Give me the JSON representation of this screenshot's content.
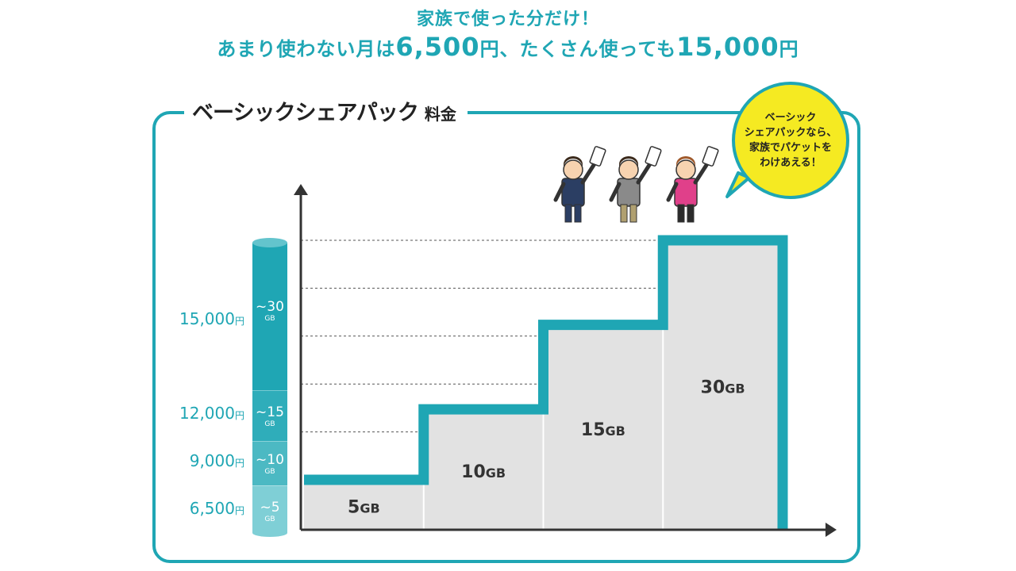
{
  "header": {
    "line1": "家族で使った分だけ！",
    "line2_pre": "あまり使わない月は",
    "line2_price_low": "6,500",
    "line2_yen1": "円、たくさん使っても",
    "line2_price_high": "15,000",
    "line2_yen2": "円"
  },
  "panel": {
    "title": "ベーシックシェアパック",
    "title_suffix": "料金"
  },
  "bubble": {
    "line1": "ベーシック",
    "line2": "シェアパックなら、",
    "line3": "家族でパケットを",
    "line4": "わけあえる！"
  },
  "colors": {
    "accent": "#1fa6b4",
    "bar_fill": "#e2e2e2",
    "bubble": "#f5ea22",
    "axis": "#333333"
  },
  "chart_data": {
    "type": "bar",
    "categories": [
      "5GB",
      "10GB",
      "15GB",
      "30GB"
    ],
    "values": [
      6500,
      9000,
      12000,
      15000
    ],
    "y_tick_labels": [
      "6,500円",
      "9,000円",
      "12,000円",
      "15,000円"
    ],
    "cylinder_labels": [
      {
        "top": "~5",
        "unit": "GB"
      },
      {
        "top": "~10",
        "unit": "GB"
      },
      {
        "top": "~15",
        "unit": "GB"
      },
      {
        "top": "~30",
        "unit": "GB"
      }
    ],
    "title": "",
    "xlabel": "",
    "ylabel": "",
    "grid": true
  }
}
